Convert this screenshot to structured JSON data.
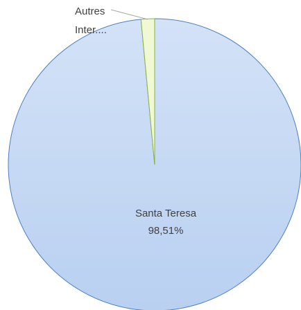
{
  "chart_data": {
    "type": "pie",
    "categories": [
      "Santa Teresa",
      "Autres Inter...."
    ],
    "values": [
      98.51,
      1.49
    ],
    "value_labels": [
      "98,51%",
      null
    ],
    "colors": [
      "#c6d9f4",
      "#f1f8d4"
    ],
    "edge_colors": [
      "#4f7fbd",
      "#8db33f"
    ]
  }
}
